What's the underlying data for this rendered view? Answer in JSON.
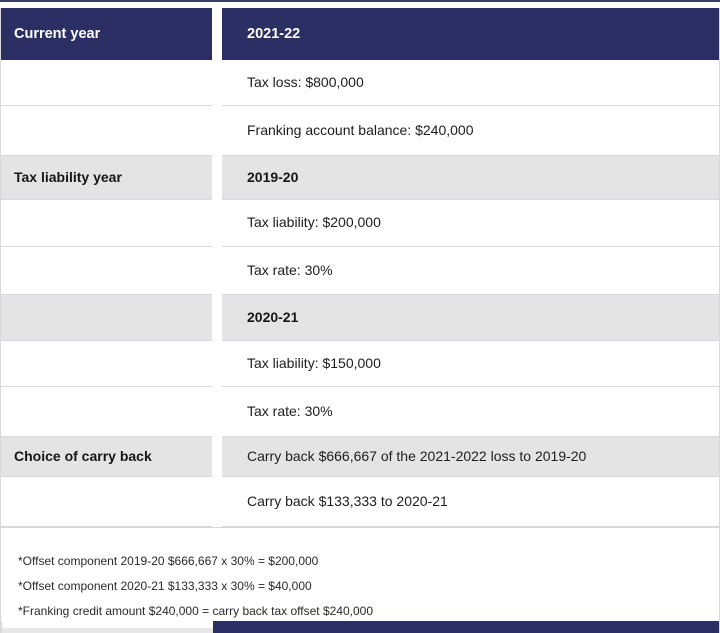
{
  "table": {
    "header": {
      "left": "Current year",
      "right": "2021-22"
    },
    "rows": [
      {
        "left": "",
        "right": "Tax loss: $800,000",
        "shaded": false,
        "left_bold": false,
        "right_bold": false
      },
      {
        "left": "",
        "right": "Franking account balance: $240,000",
        "shaded": false,
        "left_bold": false,
        "right_bold": false
      },
      {
        "left": "Tax liability year",
        "right": "2019-20",
        "shaded": true,
        "left_bold": true,
        "right_bold": true
      },
      {
        "left": "",
        "right": "Tax liability: $200,000",
        "shaded": false,
        "left_bold": false,
        "right_bold": false
      },
      {
        "left": "",
        "right": "Tax rate: 30%",
        "shaded": false,
        "left_bold": false,
        "right_bold": false
      },
      {
        "left": "",
        "right": "2020-21",
        "shaded": true,
        "left_bold": false,
        "right_bold": true
      },
      {
        "left": "",
        "right": "Tax liability: $150,000",
        "shaded": false,
        "left_bold": false,
        "right_bold": false
      },
      {
        "left": "",
        "right": "Tax rate: 30%",
        "shaded": false,
        "left_bold": false,
        "right_bold": false
      },
      {
        "left": "Choice of carry back",
        "right": "Carry back $666,667 of the 2021-2022 loss to 2019-20",
        "shaded": true,
        "left_bold": true,
        "right_bold": false
      },
      {
        "left": "",
        "right": "Carry back $133,333 to 2020-21",
        "shaded": false,
        "left_bold": false,
        "right_bold": false
      }
    ],
    "footnotes": [
      "*Offset component 2019-20 $666,667 x 30% = $200,000",
      "*Offset component 2020-21 $133,333 x 30% = $40,000",
      "*Franking credit amount $240,000 = carry back tax offset $240,000"
    ]
  },
  "colors": {
    "navy": "#2c2f63",
    "shaded_row": "#e4e4e6",
    "border": "#d9d9db",
    "text": "#1d1d1f"
  }
}
